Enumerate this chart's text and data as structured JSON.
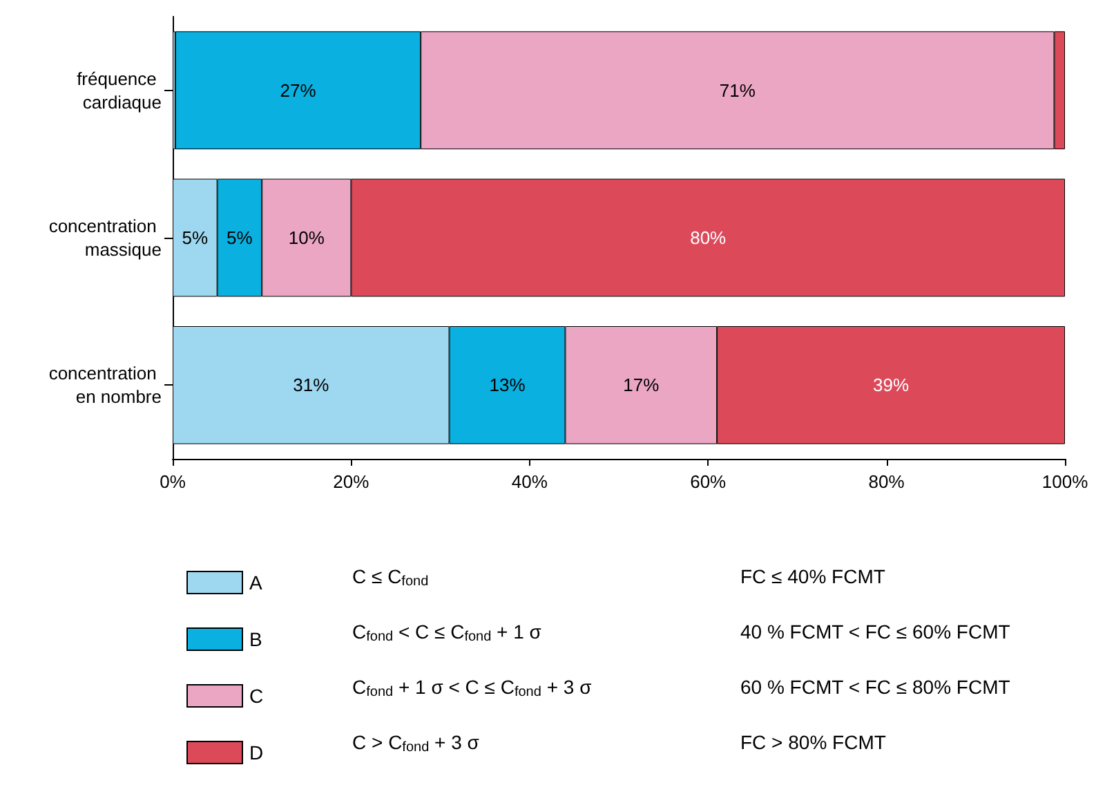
{
  "chart_data": {
    "type": "bar",
    "orientation": "horizontal",
    "stacked": true,
    "categories": [
      "fréquence cardiaque",
      "concentration massique",
      "concentration en nombre"
    ],
    "series": [
      {
        "name": "A",
        "color": "#9dd8f0",
        "values": [
          0.3,
          5,
          31
        ],
        "value_labels": [
          null,
          "5%",
          "31%"
        ]
      },
      {
        "name": "B",
        "color": "#0ab0e0",
        "values": [
          27.5,
          5,
          13
        ],
        "value_labels": [
          "27%",
          "5%",
          "13%"
        ]
      },
      {
        "name": "C",
        "color": "#eba6c4",
        "values": [
          71,
          10,
          17
        ],
        "value_labels": [
          "71%",
          "10%",
          "17%"
        ]
      },
      {
        "name": "D",
        "color": "#dc4a5a",
        "values": [
          1.2,
          80,
          39
        ],
        "value_labels": [
          null,
          "80%",
          "39%"
        ]
      }
    ],
    "xlim": [
      0,
      100
    ],
    "xticks": [
      {
        "value": 0,
        "label": "0%"
      },
      {
        "value": 20,
        "label": "20%"
      },
      {
        "value": 40,
        "label": "40%"
      },
      {
        "value": 60,
        "label": "60%"
      },
      {
        "value": 80,
        "label": "80%"
      },
      {
        "value": 100,
        "label": "100%"
      }
    ],
    "grid": false,
    "legend": "bottom",
    "annotations": [
      "C ≤ C$_{fond}$",
      "FC ≤ 40% FCMT",
      "C$_{fond}$ < C ≤ C$_{fond}$ + 1 σ",
      "40 % FCMT < FC ≤ 60% FCMT",
      "C$_{fond}$ + 1 σ < C ≤ C$_{fond}$ + 3 σ",
      "60 % FCMT < FC ≤ 80% FCMT",
      "C > C$_{fond}$ + 3 σ",
      "FC > 80% FCMT"
    ]
  }
}
